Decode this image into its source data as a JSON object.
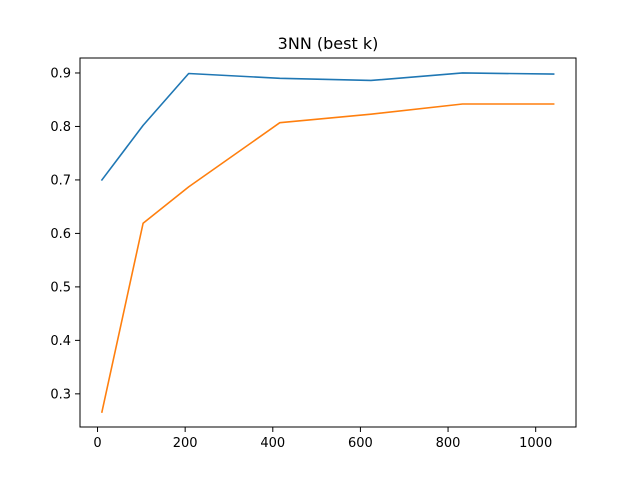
{
  "chart_data": {
    "type": "line",
    "title": "3NN (best k)",
    "xlabel": "",
    "ylabel": "",
    "xlim": [
      -40,
      1092
    ],
    "ylim": [
      0.238,
      0.928
    ],
    "x_ticks": [
      0,
      200,
      400,
      600,
      800,
      1000
    ],
    "y_ticks": [
      0.3,
      0.4,
      0.5,
      0.6,
      0.7,
      0.8,
      0.9
    ],
    "grid": false,
    "legend": "none",
    "series": [
      {
        "color": "#1f77b4",
        "x": [
          10,
          104,
          208,
          416,
          624,
          833,
          1041
        ],
        "y": [
          0.7,
          0.802,
          0.899,
          0.89,
          0.886,
          0.9,
          0.898
        ]
      },
      {
        "color": "#ff7f0e",
        "x": [
          10,
          104,
          208,
          416,
          624,
          833,
          1041
        ],
        "y": [
          0.266,
          0.619,
          0.687,
          0.807,
          0.823,
          0.842,
          0.842
        ]
      }
    ]
  }
}
